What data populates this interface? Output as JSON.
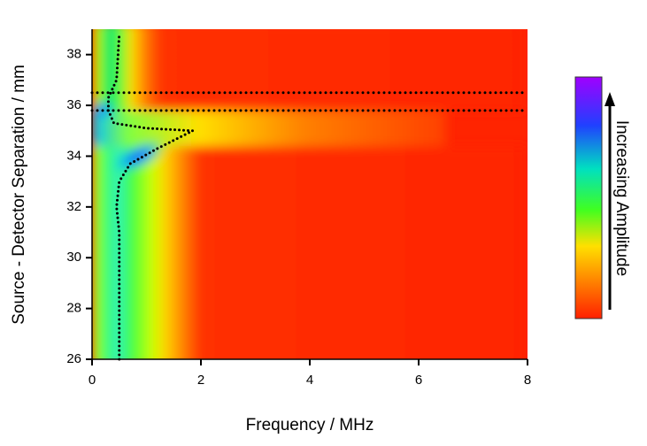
{
  "chart_data": {
    "type": "heatmap",
    "xlabel": "Frequency / MHz",
    "ylabel": "Source - Detector Separation / mm",
    "colorbar_label": "Increasing Amplitude",
    "xlim": [
      0,
      8
    ],
    "xticks": [
      0,
      2,
      4,
      6,
      8
    ],
    "ylim": [
      26,
      39
    ],
    "yticks": [
      26,
      28,
      30,
      32,
      34,
      36,
      38
    ],
    "hlines": [
      36.5,
      35.8
    ],
    "lines": [
      {
        "color": "#000000",
        "x": [
          0.5,
          0.5,
          0.5,
          0.45,
          0.5,
          0.7,
          1.2,
          1.85,
          1.0,
          0.4,
          0.3,
          0.3,
          0.45,
          0.5
        ],
        "y": [
          26,
          29,
          31,
          32,
          33,
          33.7,
          34.3,
          35.0,
          35.1,
          35.3,
          35.8,
          36.3,
          37,
          38.8
        ]
      }
    ]
  }
}
